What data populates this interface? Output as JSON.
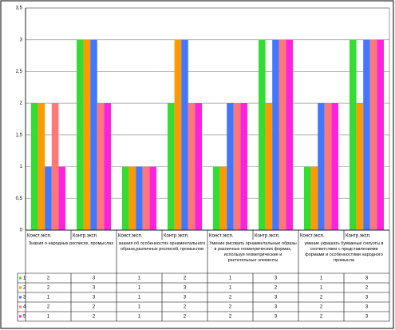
{
  "chart_data": {
    "type": "bar",
    "categories": [
      "Конст.эксп.",
      "Контр.эксп.",
      "Конст.эксп.",
      "Контр.эксп.",
      "Конст.эксп.",
      "Контр.эксп.",
      "Конст.эксп.",
      "Контр.эксп."
    ],
    "group_labels": [
      "Знания о народных росписях, промыслах",
      "знания об особенностях орнаментального образа,различных росписей, промыслов",
      "Умение рисовать орнаментальные образы в различных геометрических формах, используя геометрические и растительные элементы",
      "умение украшать бумажные силуэты в соответствии с представлениями формами и особенностями народного промысла"
    ],
    "series": [
      {
        "name": "1",
        "color": "#33dd33",
        "values": [
          2,
          3,
          1,
          2,
          1,
          3,
          1,
          3
        ]
      },
      {
        "name": "2",
        "color": "#ff9900",
        "values": [
          2,
          3,
          1,
          3,
          1,
          2,
          1,
          2
        ]
      },
      {
        "name": "3",
        "color": "#4477ff",
        "values": [
          1,
          3,
          1,
          3,
          2,
          3,
          2,
          3
        ]
      },
      {
        "name": "4",
        "color": "#ff7777",
        "values": [
          2,
          2,
          1,
          2,
          2,
          3,
          2,
          3
        ]
      },
      {
        "name": "5",
        "color": "#ff22dd",
        "values": [
          1,
          2,
          1,
          2,
          2,
          3,
          2,
          3
        ]
      }
    ],
    "ylim": [
      0,
      3.5
    ],
    "yticks": [
      0,
      {
        "value": 0.5,
        "label": "0,5"
      },
      1,
      {
        "value": 1.5,
        "label": "1,5"
      },
      2,
      {
        "value": 2.5,
        "label": "2,5"
      },
      3,
      {
        "value": 3.5,
        "label": "3,5"
      }
    ],
    "grid": true
  }
}
